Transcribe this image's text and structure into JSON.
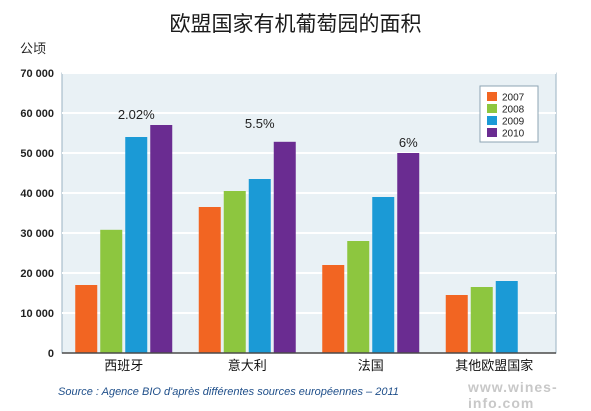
{
  "chart_data": {
    "type": "bar",
    "title": "欧盟国家有机葡萄园的面积",
    "ylabel": "公顷",
    "xlabel": "",
    "categories": [
      "西班牙",
      "意大利",
      "法国",
      "其他欧盟国家"
    ],
    "ylim": [
      0,
      70000
    ],
    "yticks": [
      0,
      10000,
      20000,
      30000,
      40000,
      50000,
      60000,
      70000
    ],
    "ytick_labels": [
      "0",
      "10 000",
      "20 000",
      "30 000",
      "40 000",
      "50 000",
      "60 000",
      "70 000"
    ],
    "grid": true,
    "legend_position": "top-right",
    "series": [
      {
        "name": "2007",
        "color": "#f26522",
        "values": [
          17000,
          36500,
          22000,
          14500
        ]
      },
      {
        "name": "2008",
        "color": "#8dc63f",
        "values": [
          30800,
          40500,
          28000,
          16500
        ]
      },
      {
        "name": "2009",
        "color": "#1b9ad6",
        "values": [
          54000,
          43500,
          39000,
          18000
        ]
      },
      {
        "name": "2010",
        "color": "#6a2c91",
        "values": [
          57000,
          52800,
          50000,
          null
        ]
      }
    ],
    "annotations": [
      {
        "category": "西班牙",
        "text": "2.02%"
      },
      {
        "category": "意大利",
        "text": "5.5%"
      },
      {
        "category": "法国",
        "text": "6%"
      }
    ]
  },
  "source": "Source : Agence BIO d'après différentes sources européennes – 2011",
  "watermark": "www.wines-info.com"
}
